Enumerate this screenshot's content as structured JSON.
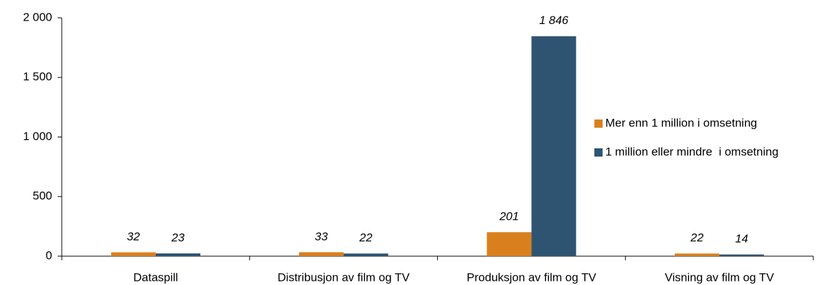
{
  "chart_data": {
    "type": "bar",
    "categories": [
      "Dataspill",
      "Distribusjon av film og TV",
      "Produksjon av film og TV",
      "Visning av film og TV"
    ],
    "series": [
      {
        "name": "Mer enn 1 million i omsetning",
        "color": "#d9801e",
        "values": [
          32,
          33,
          201,
          22
        ],
        "value_labels": [
          "32",
          "33",
          "201",
          "22"
        ]
      },
      {
        "name": "1 million eller mindre  i omsetning",
        "color": "#2f5472",
        "values": [
          23,
          22,
          1846,
          14
        ],
        "value_labels": [
          "23",
          "22",
          "1 846",
          "14"
        ]
      }
    ],
    "ylim": [
      0,
      2000
    ],
    "yticks": [
      0,
      500,
      {
        "value": 1000,
        "label": "1 000"
      },
      {
        "value": 1500,
        "label": "1 500"
      },
      {
        "value": 2000,
        "label": "2 000"
      }
    ],
    "legend": "right"
  }
}
